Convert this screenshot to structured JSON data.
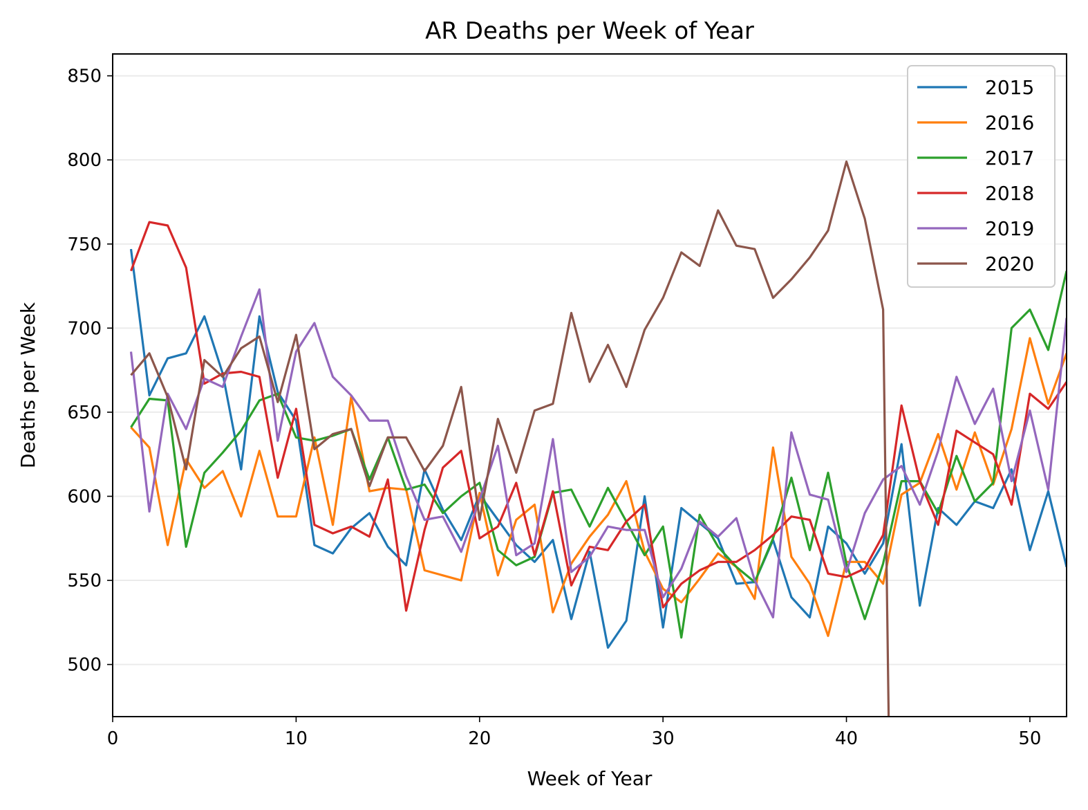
{
  "chart_data": {
    "type": "line",
    "title": "AR Deaths per Week of Year",
    "xlabel": "Week of Year",
    "ylabel": "Deaths per Week",
    "xlim": [
      0,
      52
    ],
    "ylim": [
      469,
      863
    ],
    "xticks": [
      0,
      10,
      20,
      30,
      40,
      50
    ],
    "yticks": [
      500,
      550,
      600,
      650,
      700,
      750,
      800,
      850
    ],
    "grid": "horizontal",
    "legend": "top-right",
    "series": [
      {
        "name": "2015",
        "color": "#1f77b4",
        "x": [
          1,
          2,
          3,
          4,
          5,
          6,
          7,
          8,
          9,
          10,
          11,
          12,
          13,
          14,
          15,
          16,
          17,
          18,
          19,
          20,
          21,
          22,
          23,
          24,
          25,
          26,
          27,
          28,
          29,
          30,
          31,
          32,
          33,
          34,
          35,
          36,
          37,
          38,
          39,
          40,
          41,
          42,
          43,
          44,
          45,
          46,
          47,
          48,
          49,
          50,
          51,
          52
        ],
        "values": [
          747,
          660,
          682,
          685,
          707,
          673,
          616,
          707,
          662,
          645,
          571,
          566,
          581,
          590,
          570,
          559,
          616,
          592,
          574,
          601,
          586,
          571,
          561,
          574,
          527,
          567,
          510,
          526,
          600,
          522,
          593,
          584,
          575,
          548,
          549,
          574,
          540,
          528,
          582,
          572,
          554,
          572,
          631,
          535,
          593,
          583,
          597,
          593,
          616,
          568,
          603,
          558
        ]
      },
      {
        "name": "2016",
        "color": "#ff7f0e",
        "x": [
          1,
          2,
          3,
          4,
          5,
          6,
          7,
          8,
          9,
          10,
          11,
          12,
          13,
          14,
          15,
          16,
          17,
          18,
          19,
          20,
          21,
          22,
          23,
          24,
          25,
          26,
          27,
          28,
          29,
          30,
          31,
          32,
          33,
          34,
          35,
          36,
          37,
          38,
          39,
          40,
          41,
          42,
          43,
          44,
          45,
          46,
          47,
          48,
          49,
          50,
          51,
          52
        ],
        "values": [
          641,
          629,
          571,
          622,
          605,
          615,
          588,
          627,
          588,
          588,
          635,
          583,
          659,
          603,
          605,
          604,
          556,
          553,
          550,
          602,
          553,
          586,
          595,
          531,
          560,
          576,
          589,
          609,
          567,
          545,
          537,
          551,
          566,
          558,
          539,
          629,
          564,
          548,
          517,
          561,
          561,
          548,
          601,
          608,
          637,
          604,
          638,
          607,
          640,
          694,
          655,
          685
        ]
      },
      {
        "name": "2017",
        "color": "#2ca02c",
        "x": [
          1,
          2,
          3,
          4,
          5,
          6,
          7,
          8,
          9,
          10,
          11,
          12,
          13,
          14,
          15,
          16,
          17,
          18,
          19,
          20,
          21,
          22,
          23,
          24,
          25,
          26,
          27,
          28,
          29,
          30,
          31,
          32,
          33,
          34,
          35,
          36,
          37,
          38,
          39,
          40,
          41,
          42,
          43,
          44,
          45,
          46,
          47,
          48,
          49,
          50,
          51,
          52
        ],
        "values": [
          641,
          658,
          657,
          570,
          614,
          626,
          639,
          657,
          661,
          635,
          633,
          636,
          640,
          610,
          635,
          604,
          607,
          590,
          600,
          608,
          568,
          559,
          564,
          602,
          604,
          582,
          605,
          585,
          565,
          582,
          516,
          589,
          570,
          558,
          549,
          575,
          611,
          568,
          614,
          560,
          527,
          560,
          609,
          609,
          590,
          624,
          597,
          608,
          700,
          711,
          687,
          734
        ]
      },
      {
        "name": "2018",
        "color": "#d62728",
        "x": [
          1,
          2,
          3,
          4,
          5,
          6,
          7,
          8,
          9,
          10,
          11,
          12,
          13,
          14,
          15,
          16,
          17,
          18,
          19,
          20,
          21,
          22,
          23,
          24,
          25,
          26,
          27,
          28,
          29,
          30,
          31,
          32,
          33,
          34,
          35,
          36,
          37,
          38,
          39,
          40,
          41,
          42,
          43,
          44,
          45,
          46,
          47,
          48,
          49,
          50,
          51,
          52
        ],
        "values": [
          734,
          763,
          761,
          736,
          667,
          673,
          674,
          671,
          611,
          652,
          583,
          578,
          582,
          576,
          610,
          532,
          580,
          617,
          627,
          575,
          582,
          608,
          565,
          603,
          547,
          570,
          568,
          585,
          595,
          534,
          548,
          556,
          561,
          561,
          568,
          577,
          588,
          586,
          554,
          552,
          557,
          577,
          654,
          609,
          583,
          639,
          632,
          625,
          595,
          661,
          652,
          668
        ]
      },
      {
        "name": "2019",
        "color": "#9467bd",
        "x": [
          1,
          2,
          3,
          4,
          5,
          6,
          7,
          8,
          9,
          10,
          11,
          12,
          13,
          14,
          15,
          16,
          17,
          18,
          19,
          20,
          21,
          22,
          23,
          24,
          25,
          26,
          27,
          28,
          29,
          30,
          31,
          32,
          33,
          34,
          35,
          36,
          37,
          38,
          39,
          40,
          41,
          42,
          43,
          44,
          45,
          46,
          47,
          48,
          49,
          50,
          51,
          52
        ],
        "values": [
          686,
          591,
          661,
          640,
          670,
          665,
          695,
          723,
          633,
          686,
          703,
          671,
          660,
          645,
          645,
          612,
          586,
          588,
          567,
          598,
          630,
          565,
          572,
          634,
          555,
          564,
          582,
          580,
          580,
          540,
          557,
          585,
          576,
          587,
          550,
          528,
          638,
          601,
          598,
          555,
          590,
          610,
          618,
          595,
          627,
          671,
          643,
          664,
          609,
          651,
          604,
          706
        ]
      },
      {
        "name": "2020",
        "color": "#8c564b",
        "x": [
          1,
          2,
          3,
          4,
          5,
          6,
          7,
          8,
          9,
          10,
          11,
          12,
          13,
          14,
          15,
          16,
          17,
          18,
          19,
          20,
          21,
          22,
          23,
          24,
          25,
          26,
          27,
          28,
          29,
          30,
          31,
          32,
          33,
          34,
          35,
          36,
          37,
          38,
          39,
          40,
          41,
          42,
          42.3
        ],
        "values": [
          672,
          685,
          659,
          616,
          681,
          671,
          688,
          695,
          656,
          696,
          628,
          637,
          640,
          606,
          635,
          635,
          615,
          630,
          665,
          586,
          646,
          614,
          651,
          655,
          709,
          668,
          690,
          665,
          699,
          718,
          745,
          737,
          770,
          749,
          747,
          718,
          729,
          742,
          758,
          799,
          765,
          711,
          469
        ]
      }
    ]
  }
}
